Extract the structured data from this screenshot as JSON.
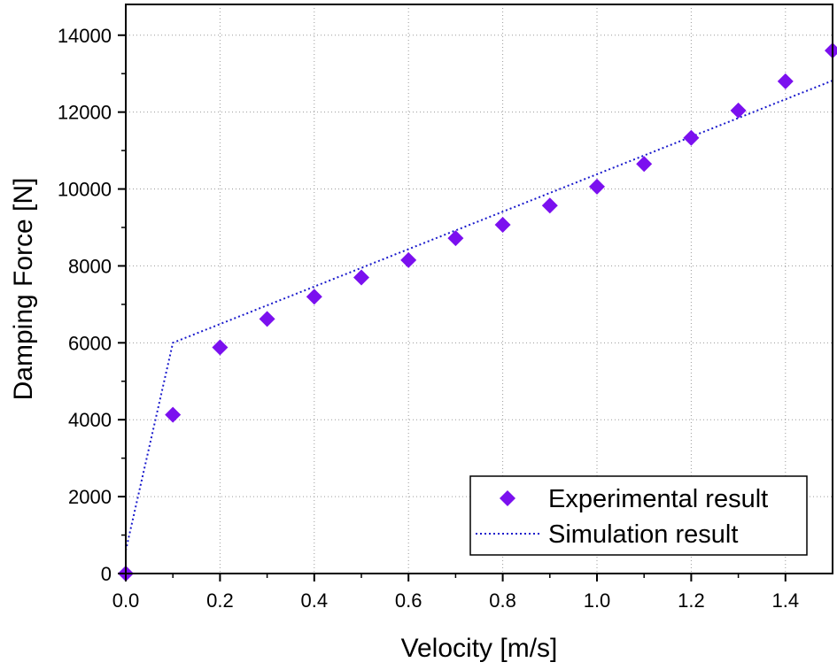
{
  "chart_data": {
    "type": "scatter",
    "title": "",
    "xlabel": "Velocity [m/s]",
    "ylabel": "Damping Force [N]",
    "xlim": [
      0,
      1.5
    ],
    "ylim": [
      0,
      14800
    ],
    "xticks": [
      0.0,
      0.2,
      0.4,
      0.6,
      0.8,
      1.0,
      1.2,
      1.4
    ],
    "xtick_labels": [
      "0.0",
      "0.2",
      "0.4",
      "0.6",
      "0.8",
      "1.0",
      "1.2",
      "1.4"
    ],
    "yticks": [
      0,
      2000,
      4000,
      6000,
      8000,
      10000,
      12000,
      14000
    ],
    "ytick_labels": [
      "0",
      "2000",
      "4000",
      "6000",
      "8000",
      "10000",
      "12000",
      "14000"
    ],
    "grid": true,
    "legend_position": "bottom-right",
    "series": [
      {
        "name": "Experimental result",
        "kind": "scatter",
        "marker": "diamond",
        "color": "#7b10ef",
        "x": [
          0.0,
          0.1,
          0.2,
          0.3,
          0.4,
          0.5,
          0.6,
          0.7,
          0.8,
          0.9,
          1.0,
          1.1,
          1.2,
          1.3,
          1.4,
          1.5
        ],
        "y": [
          0,
          4130,
          5880,
          6620,
          7200,
          7700,
          8150,
          8720,
          9070,
          9570,
          10060,
          10650,
          11330,
          12040,
          12800,
          13600
        ]
      },
      {
        "name": "Simulation result",
        "kind": "line",
        "linestyle": "dotted",
        "color": "#1a1acc",
        "x": [
          0.0,
          0.1,
          1.5
        ],
        "y": [
          600,
          6000,
          12820
        ]
      }
    ]
  }
}
